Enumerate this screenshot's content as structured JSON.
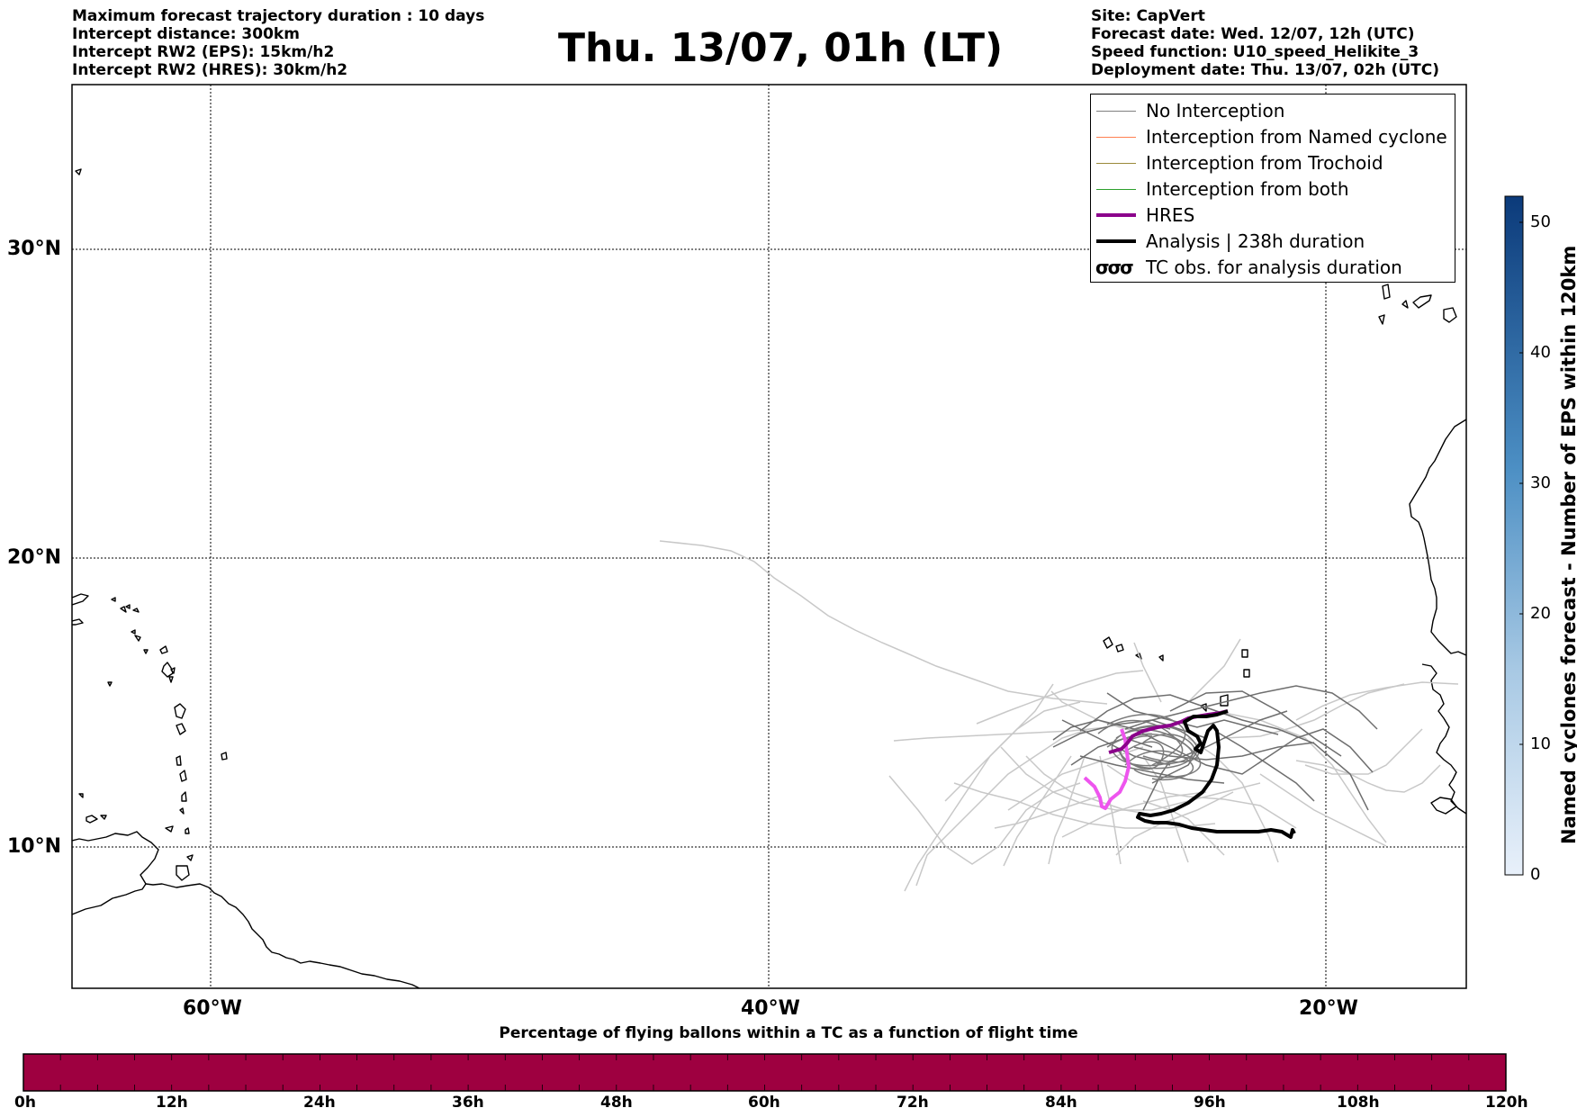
{
  "header": {
    "left_lines": [
      "Maximum forecast trajectory duration : 10 days",
      "Intercept distance: 300km",
      "Intercept RW2 (EPS):  15km/h2",
      "Intercept RW2 (HRES): 30km/h2"
    ],
    "title": "Thu. 13/07, 01h (LT)",
    "right_lines": [
      "Site: CapVert",
      "Forecast date: Wed. 12/07, 12h (UTC)",
      "Speed function: U10_speed_Helikite_3",
      "Deployment date: Thu. 13/07, 02h (UTC)"
    ]
  },
  "map": {
    "lat_labels": [
      "30°N",
      "20°N",
      "10°N"
    ],
    "lon_labels": [
      "60°W",
      "40°W",
      "20°W"
    ],
    "extent": {
      "lon_min": -65,
      "lon_max": -15,
      "lat_min": 5.2,
      "lat_max": 34.5
    }
  },
  "legend": [
    {
      "label": "No Interception",
      "color": "#808080",
      "width": 1
    },
    {
      "label": "Interception from Named cyclone",
      "color": "#ff7f50",
      "width": 1.5
    },
    {
      "label": "Interception from Trochoid",
      "color": "#9a8a3a",
      "width": 1.5
    },
    {
      "label": "Interception from both",
      "color": "#2ca02c",
      "width": 1.5
    },
    {
      "label": "HRES",
      "color": "#8b008b",
      "width": 4
    },
    {
      "label": "Analysis | 238h duration",
      "color": "#000000",
      "width": 4
    },
    {
      "label": "TC obs. for analysis duration",
      "color": "#000000",
      "width": 0,
      "icon": "tc-symbol-icon"
    }
  ],
  "colorbar_right": {
    "title": "Named cyclones forecast - Number of EPS within 120km",
    "ticks": [
      "0",
      "10",
      "20",
      "30",
      "40",
      "50"
    ],
    "range": [
      0,
      52
    ],
    "color_low": "#e8f0fa",
    "color_high": "#0b3a7a"
  },
  "colorbar_bottom": {
    "title": "Percentage of flying ballons within a TC as a function of flight time",
    "ticks": [
      "0h",
      "12h",
      "24h",
      "36h",
      "48h",
      "60h",
      "72h",
      "84h",
      "96h",
      "108h",
      "120h"
    ],
    "fill_color": "#9e0040"
  }
}
